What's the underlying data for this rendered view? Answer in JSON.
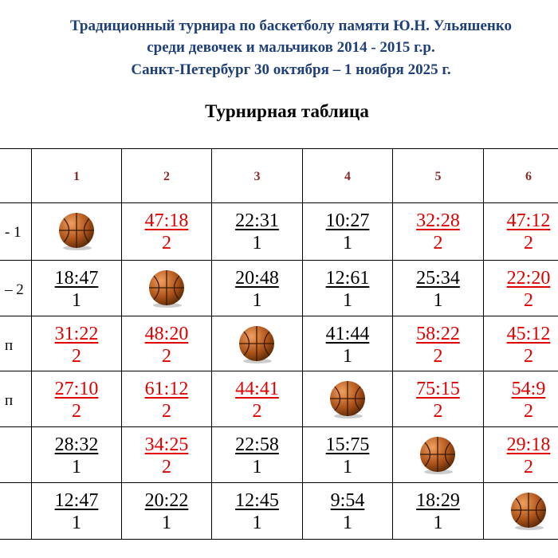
{
  "header": {
    "lines": [
      "Традиционный турнира по баскетболу памяти Ю.Н. Ульяшенко",
      "среди девочек и мальчиков 2014 -  2015 г.р.",
      "Санкт-Петербург 30 октября – 1 ноября 2025 г."
    ],
    "subtitle": "Турнирная таблица"
  },
  "table": {
    "columns": [
      "1",
      "2",
      "3",
      "4",
      "5",
      "6"
    ],
    "rows": [
      {
        "label": "- 1",
        "cells": [
          null,
          {
            "score": "47:18",
            "points": "2",
            "color": "#e00000"
          },
          {
            "score": "22:31",
            "points": "1",
            "color": "#000000"
          },
          {
            "score": "10:27",
            "points": "1",
            "color": "#000000"
          },
          {
            "score": "32:28",
            "points": "2",
            "color": "#e00000"
          },
          {
            "score": "47:12",
            "points": "2",
            "color": "#e00000"
          }
        ]
      },
      {
        "label": "– 2",
        "cells": [
          {
            "score": "18:47",
            "points": "1",
            "color": "#000000"
          },
          null,
          {
            "score": "20:48",
            "points": "1",
            "color": "#000000"
          },
          {
            "score": "12:61",
            "points": "1",
            "color": "#000000"
          },
          {
            "score": "25:34",
            "points": "1",
            "color": "#000000"
          },
          {
            "score": "22:20",
            "points": "2",
            "color": "#e00000"
          }
        ]
      },
      {
        "label": "п",
        "cells": [
          {
            "score": "31:22",
            "points": "2",
            "color": "#e00000"
          },
          {
            "score": "48:20",
            "points": "2",
            "color": "#e00000"
          },
          null,
          {
            "score": "41:44",
            "points": "1",
            "color": "#000000"
          },
          {
            "score": "58:22",
            "points": "2",
            "color": "#e00000"
          },
          {
            "score": "45:12",
            "points": "2",
            "color": "#e00000"
          }
        ]
      },
      {
        "label": "п",
        "cells": [
          {
            "score": "27:10",
            "points": "2",
            "color": "#e00000"
          },
          {
            "score": "61:12",
            "points": "2",
            "color": "#e00000"
          },
          {
            "score": "44:41",
            "points": "2",
            "color": "#e00000"
          },
          null,
          {
            "score": "75:15",
            "points": "2",
            "color": "#e00000"
          },
          {
            "score": "54:9",
            "points": "2",
            "color": "#e00000"
          }
        ]
      },
      {
        "cells": [
          {
            "score": "28:32",
            "points": "1",
            "color": "#000000"
          },
          {
            "score": "34:25",
            "points": "2",
            "color": "#e00000"
          },
          {
            "score": "22:58",
            "points": "1",
            "color": "#000000"
          },
          {
            "score": "15:75",
            "points": "1",
            "color": "#000000"
          },
          null,
          {
            "score": "29:18",
            "points": "2",
            "color": "#e00000"
          }
        ]
      },
      {
        "cells": [
          {
            "score": "12:47",
            "points": "1",
            "color": "#000000"
          },
          {
            "score": "20:22",
            "points": "1",
            "color": "#000000"
          },
          {
            "score": "12:45",
            "points": "1",
            "color": "#000000"
          },
          {
            "score": "9:54",
            "points": "1",
            "color": "#000000"
          },
          {
            "score": "18:29",
            "points": "1",
            "color": "#000000"
          },
          null
        ]
      }
    ]
  }
}
